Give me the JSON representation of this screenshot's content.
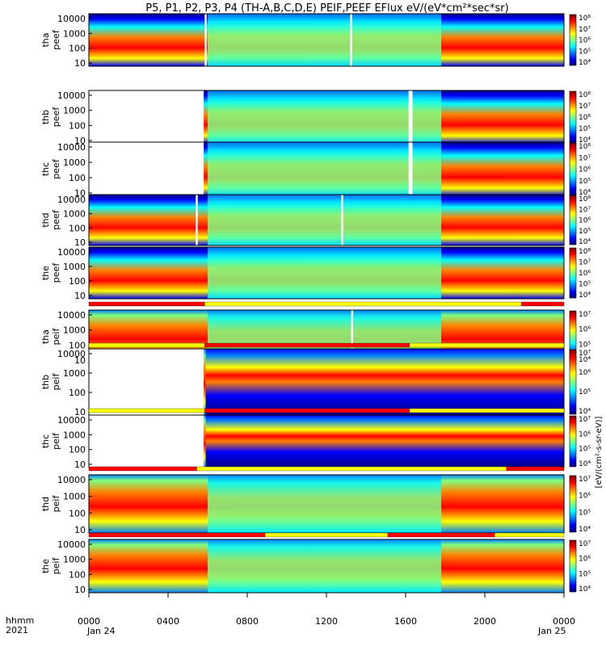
{
  "title": "P5, P1, P2, P3, P4 (TH-A,B,C,D,E) PEIF,PEEF EFlux eV/(eV*cm²*sec*sr)",
  "colors": {
    "spectrum": [
      "#000080",
      "#0000ff",
      "#0080ff",
      "#00ffff",
      "#80ff80",
      "#ffff00",
      "#ff8000",
      "#ff0000",
      "#800000"
    ],
    "bar_red": "#ff0000",
    "bar_yellow": "#ffff00",
    "gap": "#ffffff"
  },
  "chart_data": {
    "type": "heatmap",
    "x_tick_labels": [
      "0000",
      "0400",
      "0800",
      "1200",
      "1600",
      "2000",
      "0000"
    ],
    "x_tick_hours": [
      0,
      4,
      8,
      12,
      16,
      20,
      24
    ],
    "date_labels": [
      "Jan 24",
      "Jan 25"
    ],
    "x_axis_label": [
      "hhmm",
      "2021"
    ],
    "xlim_hours": [
      0,
      24
    ],
    "y_scale": "log",
    "y_tick_labels": [
      "10",
      "100",
      "1000",
      "10000"
    ],
    "colorbar_label": "[eV/(cm²-s-sr-eV)]",
    "panels": [
      {
        "ylabel": [
          "tha",
          "peef"
        ],
        "cb_ticks": [
          "10⁴",
          "10⁵",
          "10⁶",
          "10⁷",
          "10⁸"
        ],
        "gaps_hours": [
          [
            5.85,
            5.95
          ],
          [
            13.2,
            13.3
          ]
        ],
        "bars": []
      },
      {
        "ylabel": [
          "thb",
          "peef"
        ],
        "cb_ticks": [
          "10⁴",
          "10⁵",
          "10⁶",
          "10⁷",
          "10⁸"
        ],
        "gaps_hours": [
          [
            0,
            5.8
          ],
          [
            16.15,
            16.35
          ]
        ],
        "bars": []
      },
      {
        "ylabel": [
          "thc",
          "peef"
        ],
        "cb_ticks": [
          "10⁴",
          "10⁵",
          "10⁶",
          "10⁷",
          "10⁸"
        ],
        "gaps_hours": [
          [
            0,
            5.8
          ],
          [
            16.15,
            16.35
          ]
        ],
        "bars": []
      },
      {
        "ylabel": [
          "thd",
          "peef"
        ],
        "cb_ticks": [
          "10⁴",
          "10⁵",
          "10⁶",
          "10⁷",
          "10⁸"
        ],
        "gaps_hours": [
          [
            5.4,
            5.5
          ],
          [
            12.75,
            12.85
          ]
        ],
        "bars": []
      },
      {
        "ylabel": [
          "the",
          "peef"
        ],
        "cb_ticks": [
          "10⁴",
          "10⁵",
          "10⁶",
          "10⁷",
          "10⁸"
        ],
        "gaps_hours": [],
        "bars": []
      },
      {
        "ylabel": [
          "tha",
          "peif"
        ],
        "cb_ticks": [
          "10⁴",
          "10⁵",
          "10⁶",
          "10⁷"
        ],
        "gaps_hours": [
          [
            13.25,
            13.35
          ]
        ],
        "bars": [
          [
            0,
            5.85,
            "red"
          ],
          [
            5.85,
            21.85,
            "yellow"
          ],
          [
            21.85,
            24,
            "red"
          ]
        ]
      },
      {
        "ylabel": [
          "thb",
          "peif"
        ],
        "cb_ticks": [
          "10⁴",
          "10⁵",
          "10⁶",
          "10⁷"
        ],
        "gaps_hours": [
          [
            0,
            5.8
          ]
        ],
        "bars": [
          [
            0,
            5.85,
            "yellow"
          ],
          [
            5.85,
            16.2,
            "red"
          ],
          [
            16.2,
            24,
            "yellow"
          ]
        ]
      },
      {
        "ylabel": [
          "thc",
          "peif"
        ],
        "cb_ticks": [
          "10⁴",
          "10⁵",
          "10⁶",
          "10⁷"
        ],
        "gaps_hours": [
          [
            0,
            5.8
          ]
        ],
        "bars": [
          [
            0,
            5.85,
            "yellow"
          ],
          [
            5.85,
            16.2,
            "red"
          ],
          [
            16.2,
            24,
            "yellow"
          ]
        ]
      },
      {
        "ylabel": [
          "thd",
          "peif"
        ],
        "cb_ticks": [
          "10⁴",
          "10⁵",
          "10⁶",
          "10⁷"
        ],
        "gaps_hours": [],
        "bars": [
          [
            0,
            5.45,
            "red"
          ],
          [
            5.45,
            21.1,
            "yellow"
          ],
          [
            21.1,
            24,
            "red"
          ]
        ]
      },
      {
        "ylabel": [
          "the",
          "peif"
        ],
        "cb_ticks": [
          "10⁴",
          "10⁵",
          "10⁶",
          "10⁷"
        ],
        "gaps_hours": [],
        "bars": [
          [
            0,
            8.9,
            "red"
          ],
          [
            8.9,
            15.1,
            "yellow"
          ],
          [
            15.1,
            20.5,
            "red"
          ],
          [
            20.5,
            24,
            "yellow"
          ]
        ]
      }
    ]
  }
}
